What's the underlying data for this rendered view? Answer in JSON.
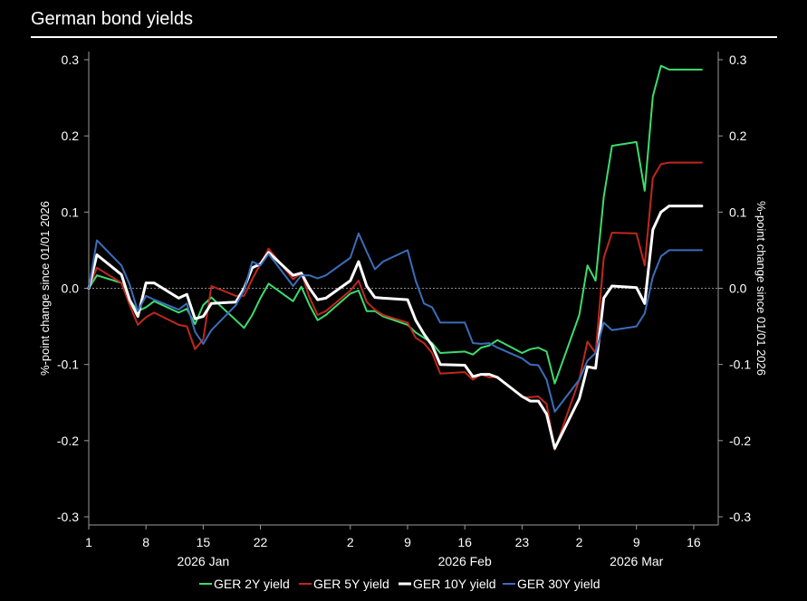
{
  "title": "German bond yields",
  "chart_data": {
    "type": "line",
    "title": "German bond yields",
    "ylabel_left": "%-point change since 01/01 2026",
    "ylabel_right": "%-point change since 01/01 2026",
    "ylim": [
      -0.3,
      0.3
    ],
    "yticks": [
      0.3,
      0.2,
      0.1,
      0.0,
      -0.1,
      -0.2,
      -0.3
    ],
    "ytick_labels": [
      "0.3",
      "0.2",
      "0.1",
      "0.0",
      "-0.1",
      "-0.2",
      "-0.3"
    ],
    "xlim": [
      "2026-01-01",
      "2026-03-19"
    ],
    "xticks": [
      {
        "date": "2026-01-01",
        "label": "1"
      },
      {
        "date": "2026-01-08",
        "label": "8"
      },
      {
        "date": "2026-01-15",
        "label": "15"
      },
      {
        "date": "2026-01-22",
        "label": "22"
      },
      {
        "date": "2026-02-02",
        "label": "2"
      },
      {
        "date": "2026-02-09",
        "label": "9"
      },
      {
        "date": "2026-02-16",
        "label": "16"
      },
      {
        "date": "2026-02-23",
        "label": "23"
      },
      {
        "date": "2026-03-02",
        "label": "2"
      },
      {
        "date": "2026-03-09",
        "label": "9"
      },
      {
        "date": "2026-03-16",
        "label": "16"
      }
    ],
    "month_labels": [
      {
        "date": "2026-01-15",
        "label": "2026 Jan"
      },
      {
        "date": "2026-02-16",
        "label": "2026 Feb"
      },
      {
        "date": "2026-03-09",
        "label": "2026 Mar"
      }
    ],
    "zero_line": true,
    "grid": false,
    "legend_position": "bottom",
    "x": [
      "2026-01-01",
      "2026-01-02",
      "2026-01-05",
      "2026-01-06",
      "2026-01-07",
      "2026-01-08",
      "2026-01-09",
      "2026-01-12",
      "2026-01-13",
      "2026-01-14",
      "2026-01-15",
      "2026-01-16",
      "2026-01-19",
      "2026-01-20",
      "2026-01-21",
      "2026-01-22",
      "2026-01-23",
      "2026-01-26",
      "2026-01-27",
      "2026-01-28",
      "2026-01-29",
      "2026-01-30",
      "2026-02-02",
      "2026-02-03",
      "2026-02-04",
      "2026-02-05",
      "2026-02-06",
      "2026-02-09",
      "2026-02-10",
      "2026-02-11",
      "2026-02-12",
      "2026-02-13",
      "2026-02-16",
      "2026-02-17",
      "2026-02-18",
      "2026-02-19",
      "2026-02-20",
      "2026-02-23",
      "2026-02-24",
      "2026-02-25",
      "2026-02-26",
      "2026-02-27",
      "2026-03-02",
      "2026-03-03",
      "2026-03-04",
      "2026-03-05",
      "2026-03-06",
      "2026-03-09",
      "2026-03-10",
      "2026-03-11",
      "2026-03-12",
      "2026-03-13",
      "2026-03-16",
      "2026-03-17"
    ],
    "series": [
      {
        "name": "GER 2Y yield",
        "color": "#3ddc6e",
        "values": [
          0.0,
          0.017,
          0.007,
          -0.015,
          -0.03,
          -0.025,
          -0.017,
          -0.032,
          -0.027,
          -0.047,
          -0.022,
          -0.012,
          -0.042,
          -0.052,
          -0.035,
          -0.013,
          0.006,
          -0.017,
          0.002,
          -0.022,
          -0.042,
          -0.035,
          -0.007,
          -0.003,
          -0.03,
          -0.03,
          -0.037,
          -0.048,
          -0.058,
          -0.065,
          -0.072,
          -0.085,
          -0.083,
          -0.087,
          -0.078,
          -0.075,
          -0.068,
          -0.085,
          -0.08,
          -0.078,
          -0.083,
          -0.125,
          -0.035,
          0.03,
          0.01,
          0.12,
          0.187,
          0.192,
          0.128,
          0.252,
          0.292,
          0.287,
          0.287,
          0.287
        ]
      },
      {
        "name": "GER 5Y yield",
        "color": "#c0281d",
        "values": [
          0.0,
          0.027,
          0.007,
          -0.022,
          -0.048,
          -0.038,
          -0.032,
          -0.048,
          -0.05,
          -0.08,
          -0.067,
          0.003,
          -0.01,
          -0.01,
          0.012,
          0.032,
          0.052,
          0.012,
          0.02,
          -0.012,
          -0.035,
          -0.03,
          -0.003,
          0.01,
          -0.018,
          -0.028,
          -0.035,
          -0.045,
          -0.065,
          -0.072,
          -0.085,
          -0.112,
          -0.11,
          -0.12,
          -0.113,
          -0.117,
          -0.116,
          -0.143,
          -0.143,
          -0.142,
          -0.152,
          -0.212,
          -0.12,
          -0.07,
          -0.085,
          0.04,
          0.073,
          0.072,
          0.03,
          0.145,
          0.163,
          0.165,
          0.165,
          0.165
        ]
      },
      {
        "name": "GER 10Y yield",
        "color": "#ffffff",
        "values": [
          0.0,
          0.044,
          0.018,
          -0.015,
          -0.037,
          0.007,
          0.007,
          -0.013,
          -0.008,
          -0.04,
          -0.037,
          -0.02,
          -0.018,
          0.0,
          0.027,
          0.032,
          0.047,
          0.017,
          0.02,
          0.0,
          -0.015,
          -0.013,
          0.01,
          0.035,
          0.003,
          -0.012,
          -0.013,
          -0.015,
          -0.042,
          -0.06,
          -0.075,
          -0.1,
          -0.101,
          -0.116,
          -0.113,
          -0.113,
          -0.117,
          -0.142,
          -0.148,
          -0.148,
          -0.165,
          -0.21,
          -0.145,
          -0.103,
          -0.105,
          -0.013,
          0.003,
          0.001,
          -0.02,
          0.077,
          0.1,
          0.108,
          0.108,
          0.108
        ]
      },
      {
        "name": "GER 30Y yield",
        "color": "#3c6dba",
        "values": [
          0.0,
          0.063,
          0.03,
          0.005,
          -0.03,
          -0.01,
          -0.015,
          -0.028,
          -0.02,
          -0.057,
          -0.073,
          -0.055,
          -0.022,
          -0.003,
          0.035,
          0.03,
          0.045,
          0.003,
          0.017,
          0.017,
          0.013,
          0.017,
          0.04,
          0.072,
          0.048,
          0.025,
          0.035,
          0.05,
          0.01,
          -0.02,
          -0.025,
          -0.045,
          -0.045,
          -0.072,
          -0.073,
          -0.072,
          -0.078,
          -0.092,
          -0.1,
          -0.101,
          -0.12,
          -0.162,
          -0.12,
          -0.095,
          -0.085,
          -0.045,
          -0.055,
          -0.05,
          -0.033,
          0.015,
          0.042,
          0.05,
          0.05,
          0.05
        ]
      }
    ]
  }
}
